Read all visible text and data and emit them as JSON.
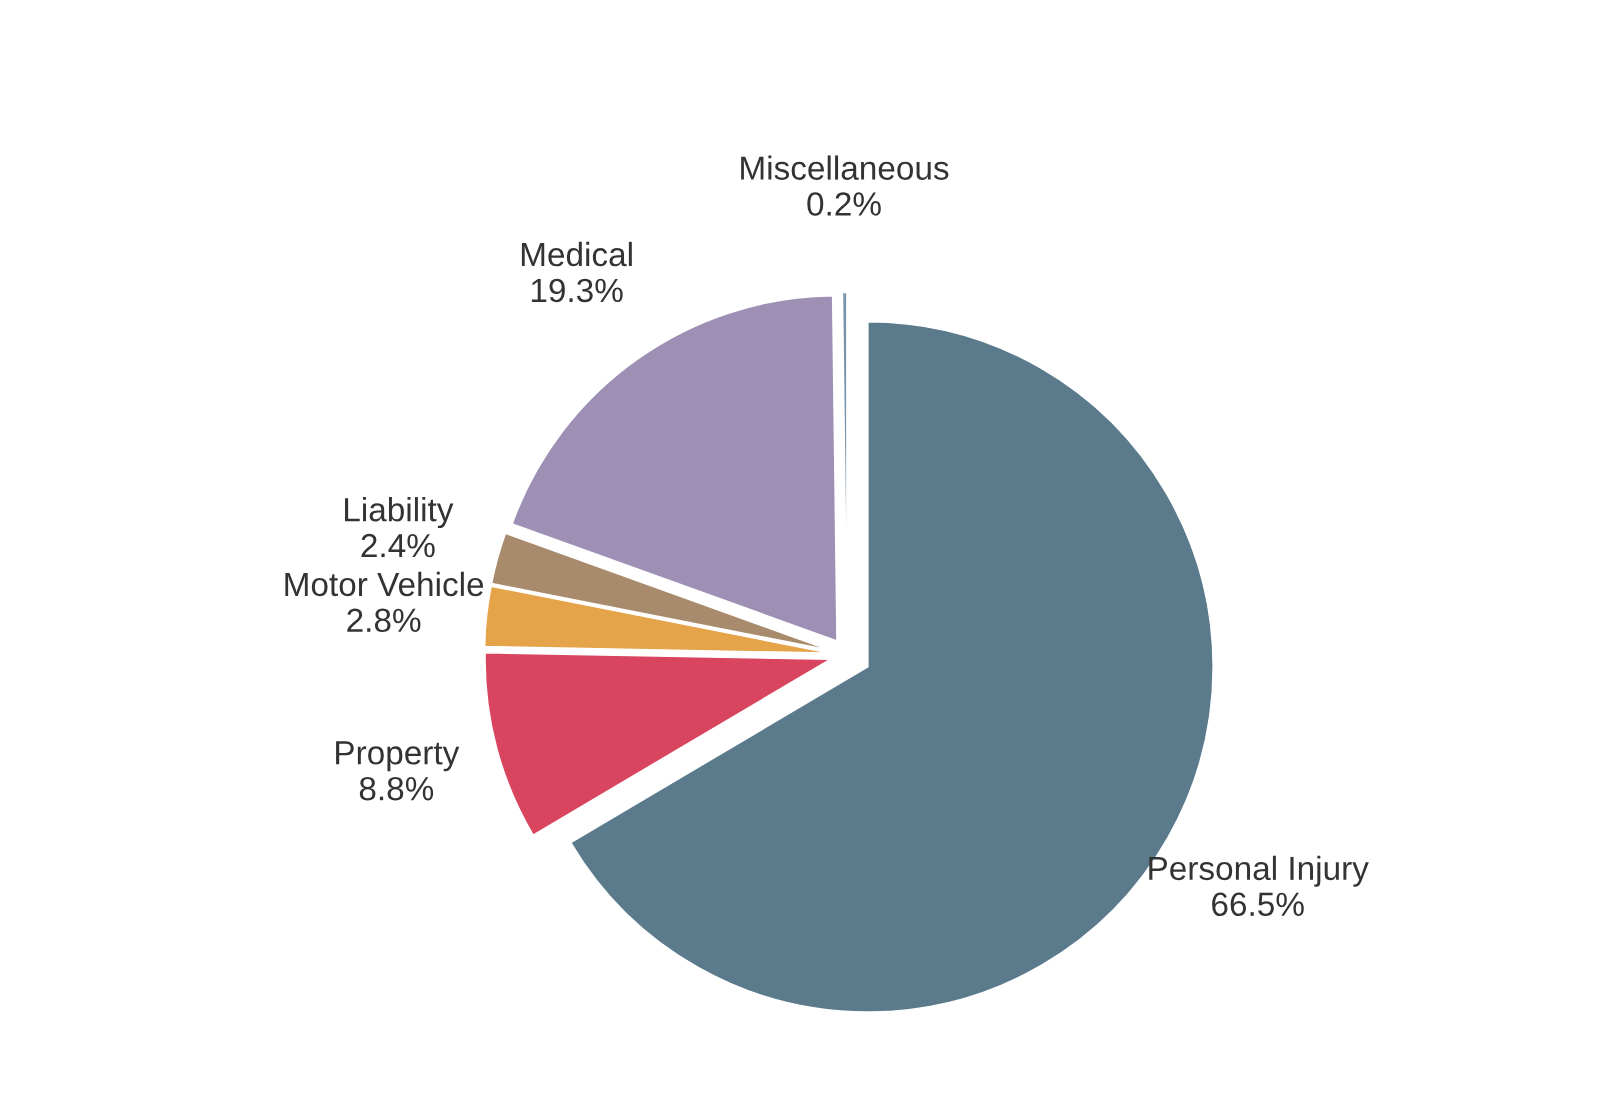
{
  "chart_data": {
    "type": "pie",
    "categories": [
      "Personal Injury",
      "Property",
      "Motor Vehicle",
      "Liability",
      "Medical",
      "Miscellaneous"
    ],
    "values": [
      66.5,
      8.8,
      2.8,
      2.4,
      19.3,
      0.2
    ],
    "value_labels": [
      "66.5%",
      "8.8%",
      "2.8%",
      "2.4%",
      "19.3%",
      "0.2%"
    ],
    "colors": [
      "#5b7b8d",
      "#d9455f",
      "#e6a44a",
      "#a88b6c",
      "#9e8fb5",
      "#7a93a8"
    ],
    "legend": false
  }
}
